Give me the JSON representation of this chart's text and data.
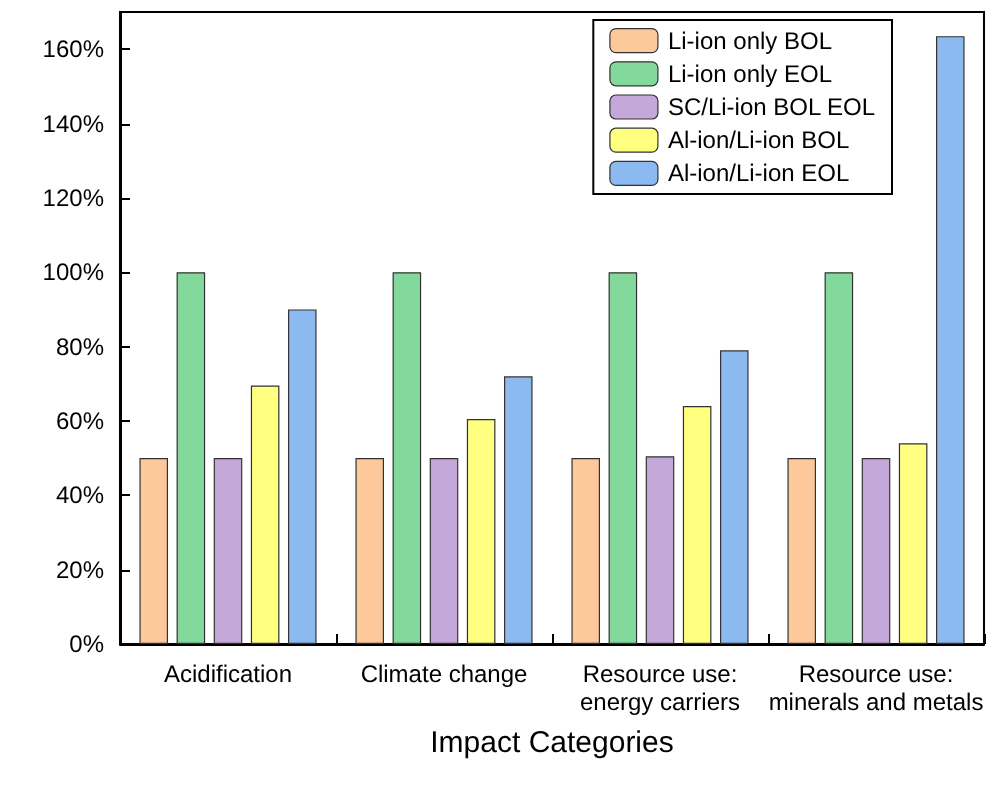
{
  "chart_data": {
    "type": "bar",
    "xlabel": "Impact Categories",
    "categories": [
      "Acidification",
      "Climate change",
      "Resource use:\nenergy carriers",
      "Resource use:\nminerals and metals"
    ],
    "series": [
      {
        "name": "Li-ion only BOL",
        "color": "#fdc99b",
        "values": [
          50,
          50,
          50,
          50
        ]
      },
      {
        "name": "Li-ion only EOL",
        "color": "#82d99b",
        "values": [
          100,
          100,
          100,
          100
        ]
      },
      {
        "name": "SC/Li-ion BOL EOL",
        "color": "#c5a8da",
        "values": [
          50,
          50,
          50.5,
          50
        ]
      },
      {
        "name": "Al-ion/Li-ion BOL",
        "color": "#ffff80",
        "values": [
          69.5,
          60.5,
          64,
          54
        ]
      },
      {
        "name": "Al-ion/Li-ion EOL",
        "color": "#8cb9f0",
        "values": [
          90,
          72,
          79,
          163.5
        ]
      }
    ],
    "ylim": [
      0,
      170
    ],
    "yticks": [
      {
        "value": 0,
        "label": "0%"
      },
      {
        "value": 20,
        "label": "20%"
      },
      {
        "value": 40,
        "label": "40%"
      },
      {
        "value": 60,
        "label": "60%"
      },
      {
        "value": 80,
        "label": "80%"
      },
      {
        "value": 100,
        "label": "100%"
      },
      {
        "value": 120,
        "label": "120%"
      },
      {
        "value": 140,
        "label": "140%"
      },
      {
        "value": 160,
        "label": "160%"
      }
    ],
    "grid": false,
    "legend": "top right"
  }
}
